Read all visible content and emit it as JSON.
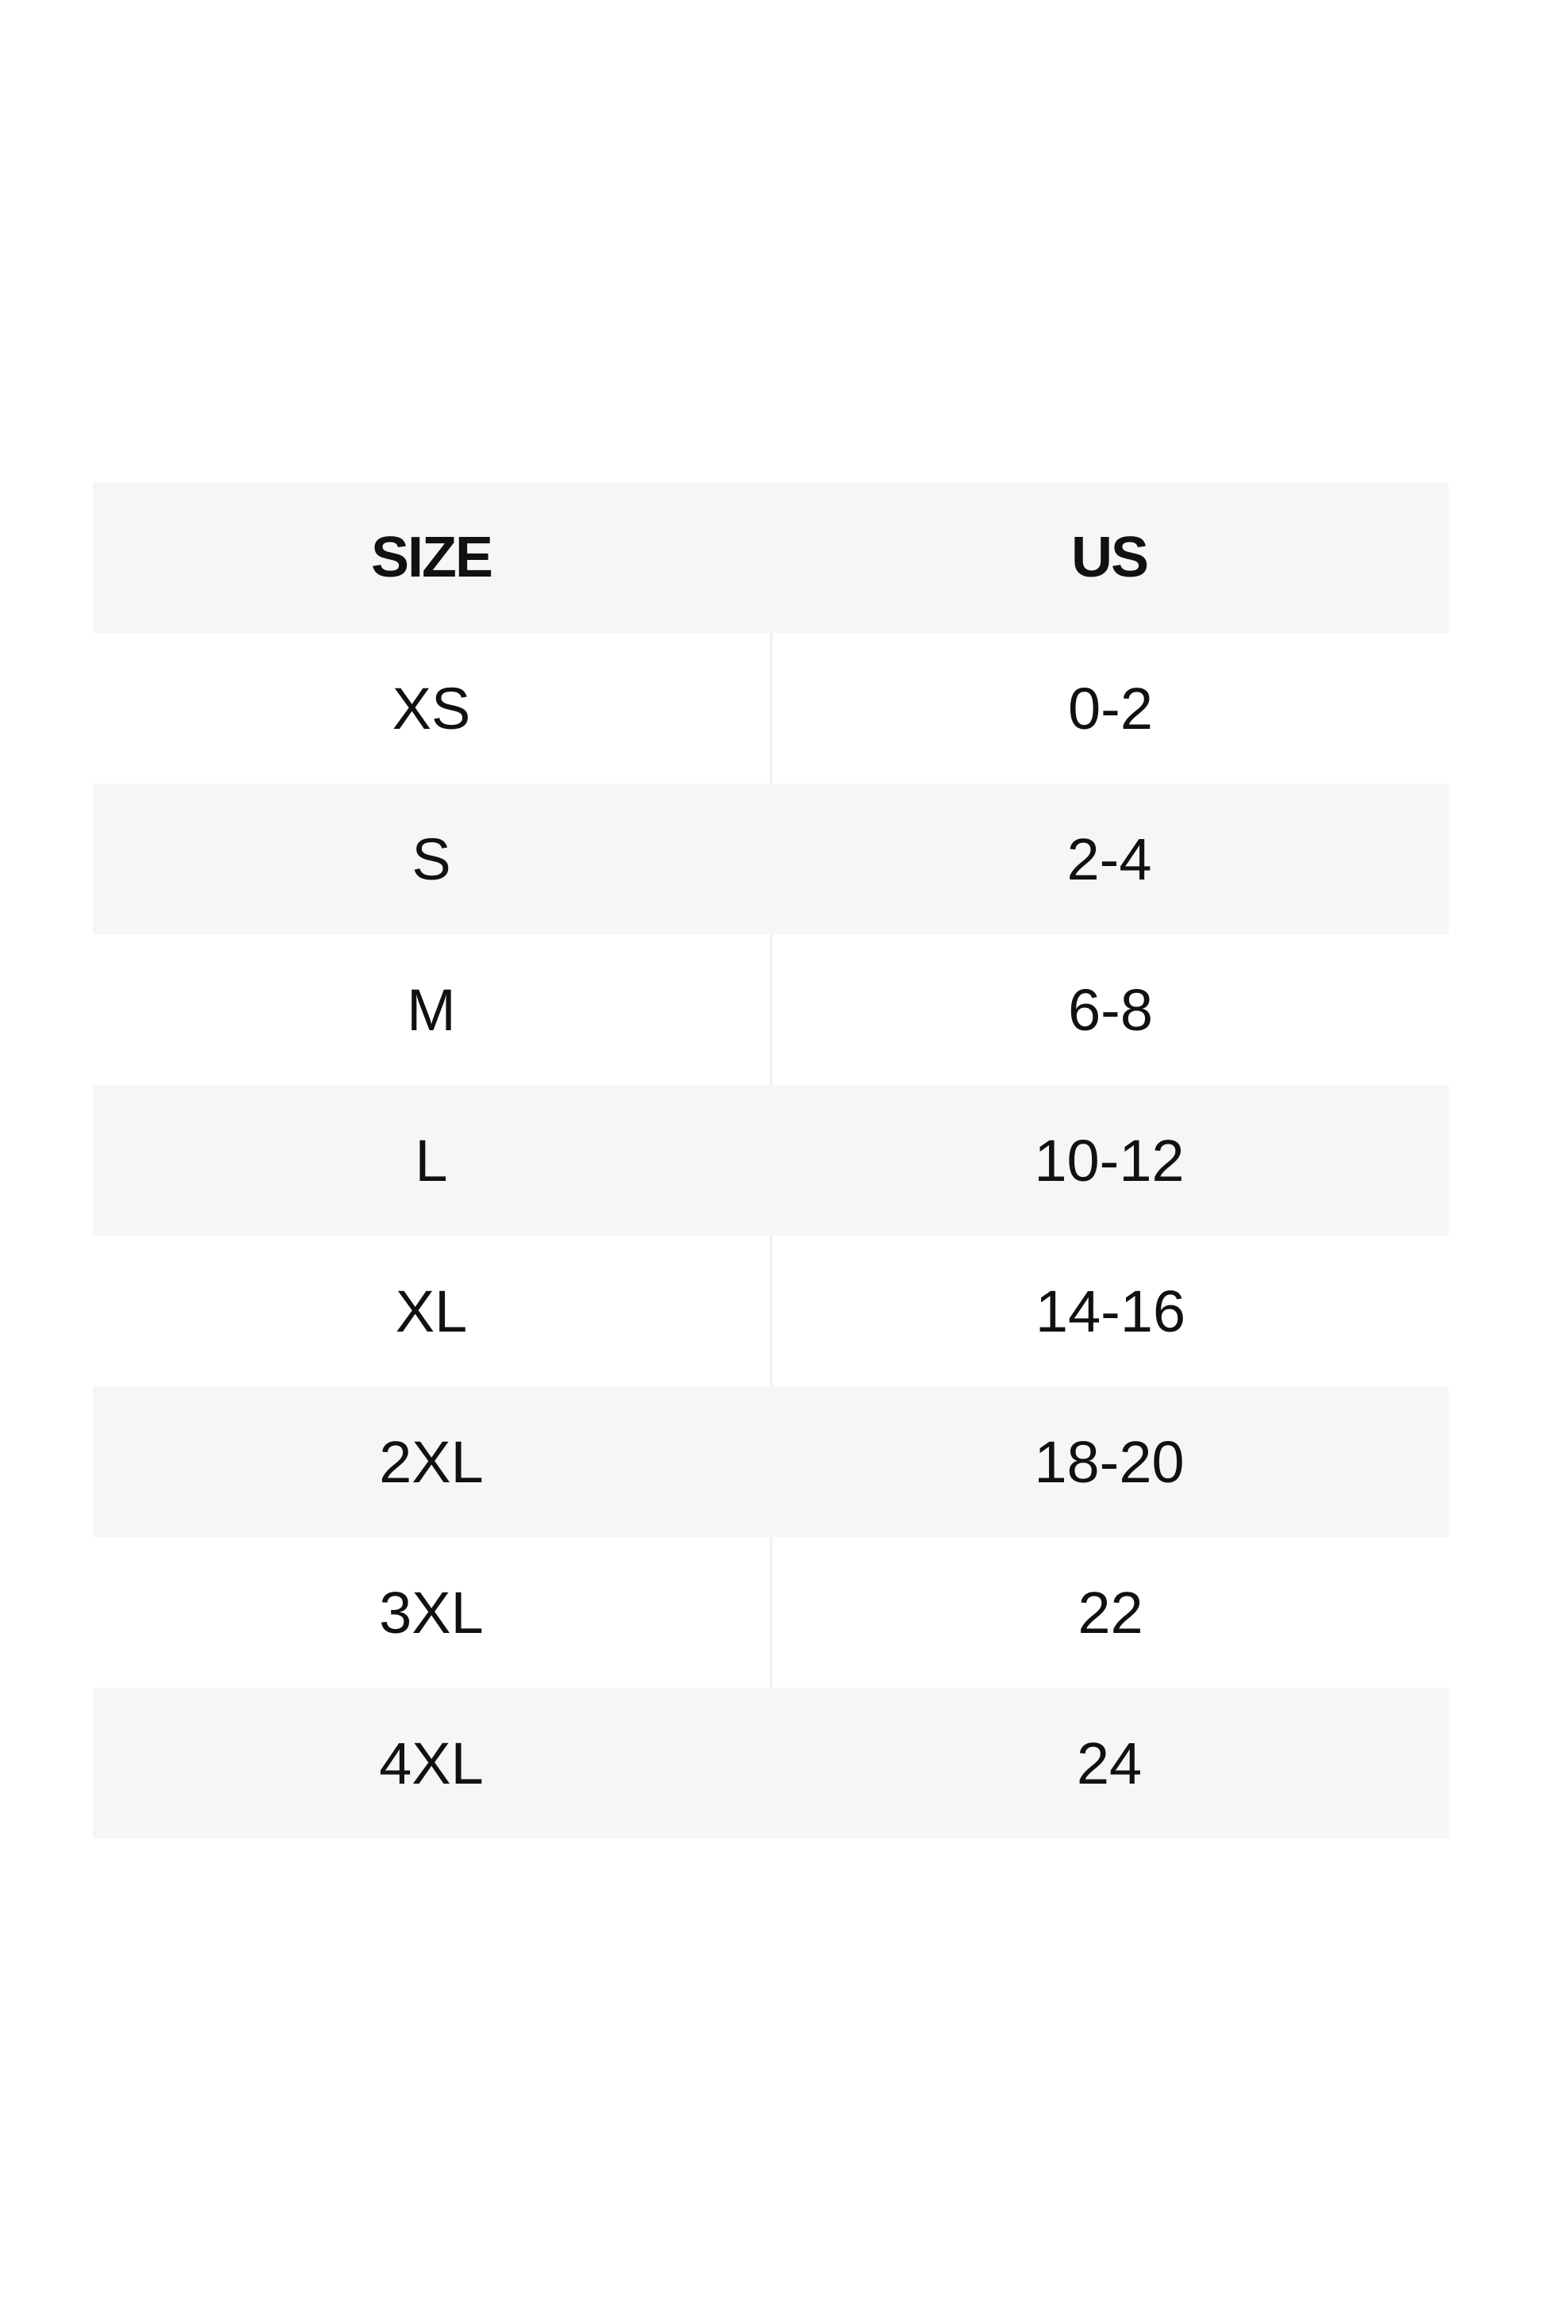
{
  "table": {
    "headers": [
      "SIZE",
      "US"
    ],
    "rows": [
      [
        "XS",
        "0-2"
      ],
      [
        "S",
        "2-4"
      ],
      [
        "M",
        "6-8"
      ],
      [
        "L",
        "10-12"
      ],
      [
        "XL",
        "14-16"
      ],
      [
        "2XL",
        "18-20"
      ],
      [
        "3XL",
        "22"
      ],
      [
        "4XL",
        "24"
      ]
    ]
  },
  "colors": {
    "stripe": "#f6f6f6",
    "text": "#111111"
  }
}
